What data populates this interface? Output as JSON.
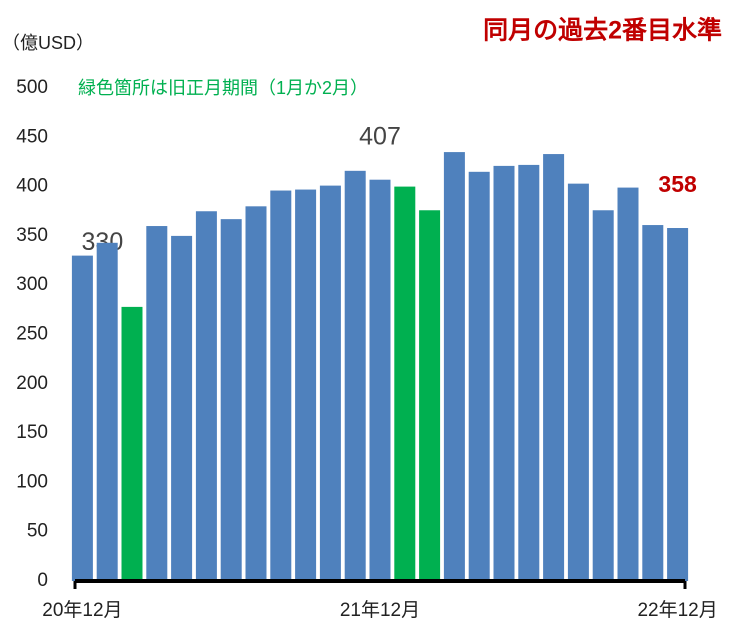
{
  "chart_data": {
    "type": "bar",
    "title": "同月の過去2番目水準",
    "y_axis_label": "（億USD）",
    "annotations": [
      "緑色箇所は旧正月期間（1月か2月）"
    ],
    "categories": [
      "20年12月",
      null,
      null,
      null,
      null,
      null,
      null,
      null,
      null,
      null,
      null,
      null,
      "21年12月",
      null,
      null,
      null,
      null,
      null,
      null,
      null,
      null,
      null,
      null,
      null,
      "22年12月"
    ],
    "values": [
      330,
      343,
      278,
      360,
      350,
      375,
      367,
      380,
      396,
      397,
      401,
      416,
      407,
      400,
      376,
      435,
      415,
      421,
      422,
      433,
      403,
      376,
      399,
      361,
      358
    ],
    "value_labels": [
      "330",
      null,
      null,
      null,
      null,
      null,
      null,
      null,
      null,
      null,
      null,
      null,
      "407",
      null,
      null,
      null,
      null,
      null,
      null,
      null,
      null,
      null,
      null,
      null,
      "358"
    ],
    "colors": [
      "#4f81bd",
      "#4f81bd",
      "#00b050",
      "#4f81bd",
      "#4f81bd",
      "#4f81bd",
      "#4f81bd",
      "#4f81bd",
      "#4f81bd",
      "#4f81bd",
      "#4f81bd",
      "#4f81bd",
      "#4f81bd",
      "#00b050",
      "#00b050",
      "#4f81bd",
      "#4f81bd",
      "#4f81bd",
      "#4f81bd",
      "#4f81bd",
      "#4f81bd",
      "#4f81bd",
      "#4f81bd",
      "#4f81bd",
      "#4f81bd"
    ],
    "ylim": [
      0,
      500
    ],
    "yticks": [
      0,
      50,
      100,
      150,
      200,
      250,
      300,
      350,
      400,
      450,
      500
    ],
    "grid": false
  }
}
